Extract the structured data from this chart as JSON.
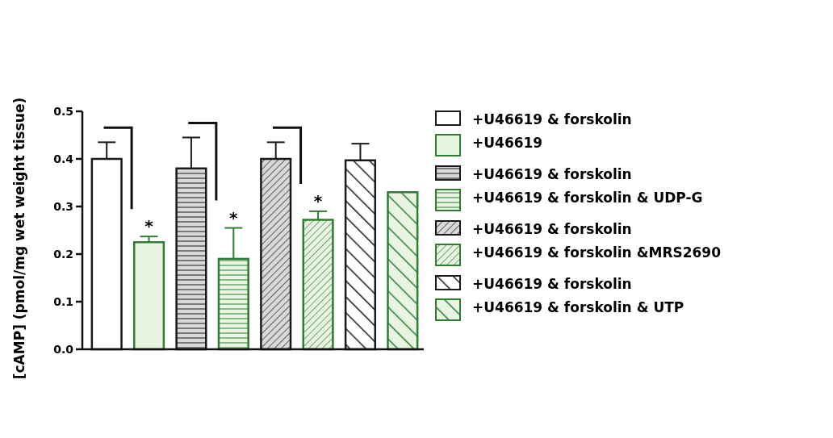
{
  "chart_data": {
    "type": "bar",
    "ylabel": "[cAMP] (pmol/mg wet weight tissue)",
    "categories": [
      null,
      null,
      null,
      null,
      null,
      null,
      null,
      null
    ],
    "series": [
      {
        "name": "+U46619 & forskolin",
        "color": "#1a1a1a",
        "values": [
          0.4,
          null,
          null,
          null,
          null,
          null,
          null,
          null
        ],
        "errors": [
          [
            0.4,
            0.435
          ],
          null,
          null,
          null,
          null,
          null,
          null,
          null
        ]
      },
      {
        "name": "+U46619",
        "color": "#2e7d32",
        "values": [
          null,
          0.225,
          null,
          null,
          null,
          null,
          null,
          null
        ],
        "errors": [
          null,
          [
            0.225,
            0.237
          ],
          null,
          null,
          null,
          null,
          null,
          null
        ]
      },
      {
        "name": "+U46619 & forskolin",
        "color": "#1a1a1a",
        "values": [
          null,
          null,
          0.38,
          null,
          null,
          null,
          null,
          null
        ],
        "errors": [
          null,
          null,
          [
            0.38,
            0.445
          ],
          null,
          null,
          null,
          null,
          null
        ]
      },
      {
        "name": "+U46619 & forskolin & UDP-G",
        "color": "#2e7d32",
        "values": [
          null,
          null,
          null,
          0.19,
          null,
          null,
          null,
          null
        ],
        "errors": [
          null,
          null,
          null,
          [
            0.19,
            0.255
          ],
          null,
          null,
          null,
          null
        ]
      },
      {
        "name": "+U46619 & forskolin",
        "color": "#1a1a1a",
        "values": [
          null,
          null,
          null,
          null,
          0.4,
          null,
          null,
          null
        ],
        "errors": [
          null,
          null,
          null,
          null,
          [
            0.4,
            0.435
          ],
          null,
          null,
          null
        ]
      },
      {
        "name": "+U46619 & forskolin &MRS2690",
        "color": "#2e7d32",
        "values": [
          null,
          null,
          null,
          null,
          null,
          0.272,
          null,
          null
        ],
        "errors": [
          null,
          null,
          null,
          null,
          null,
          [
            0.272,
            0.29
          ],
          null,
          null
        ]
      },
      {
        "name": "+U46619 & forskolin",
        "color": "#1a1a1a",
        "values": [
          null,
          null,
          null,
          null,
          null,
          null,
          0.397,
          null
        ],
        "errors": [
          null,
          null,
          null,
          null,
          null,
          null,
          [
            0.397,
            0.432
          ],
          null
        ]
      },
      {
        "name": "+U46619 & forskolin & UTP",
        "color": "#2e7d32",
        "values": [
          null,
          null,
          null,
          null,
          null,
          null,
          null,
          0.33
        ]
      }
    ],
    "ylim": [
      0,
      0.5
    ],
    "yticks": [
      {
        "value": 0,
        "label": "0.0"
      },
      {
        "value": 0.1,
        "label": "0.1"
      },
      {
        "value": 0.2,
        "label": "0.2"
      },
      {
        "value": 0.3,
        "label": "0.3"
      },
      {
        "value": 0.4,
        "label": "0.4"
      },
      {
        "value": 0.5,
        "label": "0.5"
      }
    ],
    "annotations": [
      "*",
      "*",
      "*"
    ],
    "legend": "right",
    "grid": false
  }
}
